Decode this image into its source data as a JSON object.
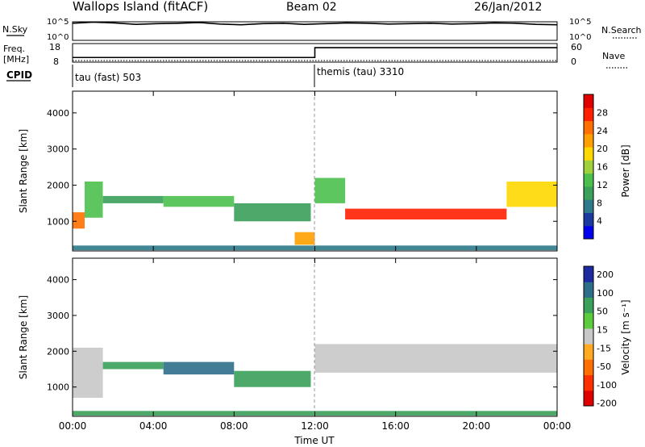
{
  "header": {
    "station": "Wallops Island (fitACF)",
    "beam": "Beam 02",
    "date": "26/Jan/2012"
  },
  "status_panels": {
    "nsky_label": "N.Sky",
    "nsky_ticks": [
      "10^5",
      "10^0"
    ],
    "nsearch_label": "N.Search",
    "nsearch_ticks": [
      "10^5",
      "10^0"
    ],
    "freq_label": "Freq.",
    "freq_unit": "[MHz]",
    "freq_ticks": [
      "18",
      "8"
    ],
    "nave_label": "Nave",
    "nave_ticks": [
      "60",
      "0"
    ],
    "cpid_label": "CPID",
    "cpid_modes": [
      {
        "name": "tau (fast) 503",
        "start": "00:00"
      },
      {
        "name": "themis (tau) 3310",
        "start": "12:00"
      }
    ]
  },
  "chart_data": [
    {
      "type": "heatmap",
      "name": "power",
      "xlabel": "Time UT",
      "ylabel": "Slant Range [km]",
      "x_ticks": [
        "00:00",
        "04:00",
        "08:00",
        "12:00",
        "16:00",
        "20:00",
        "00:00"
      ],
      "xlim_hours": [
        0,
        24
      ],
      "y_ticks": [
        1000,
        2000,
        3000,
        4000
      ],
      "ylim_km": [
        180,
        4600
      ],
      "colorbar": {
        "label": "Power [dB]",
        "ticks": [
          4,
          8,
          12,
          16,
          20,
          24,
          28
        ],
        "range": [
          0,
          32
        ],
        "colors": [
          "#0000ee",
          "#1a3aa0",
          "#2e7a8a",
          "#3aa05a",
          "#4cc04c",
          "#9fd23a",
          "#ffd800",
          "#ffa000",
          "#ff7000",
          "#ff2000",
          "#e00000"
        ]
      },
      "echo_regions": [
        {
          "t0": 0.0,
          "t1": 0.6,
          "r0": 800,
          "r1": 1250,
          "power_db": 24
        },
        {
          "t0": 0.6,
          "t1": 1.5,
          "r0": 1100,
          "r1": 2100,
          "power_db": 12
        },
        {
          "t0": 1.5,
          "t1": 4.5,
          "r0": 1500,
          "r1": 1700,
          "power_db": 10
        },
        {
          "t0": 4.5,
          "t1": 8.0,
          "r0": 1400,
          "r1": 1700,
          "power_db": 14
        },
        {
          "t0": 8.0,
          "t1": 11.8,
          "r0": 1000,
          "r1": 1500,
          "power_db": 10
        },
        {
          "t0": 11.0,
          "t1": 12.0,
          "r0": 350,
          "r1": 700,
          "power_db": 22
        },
        {
          "t0": 12.0,
          "t1": 13.5,
          "r0": 1500,
          "r1": 2200,
          "power_db": 14
        },
        {
          "t0": 13.5,
          "t1": 21.5,
          "r0": 1050,
          "r1": 1350,
          "power_db": 28
        },
        {
          "t0": 21.5,
          "t1": 24.0,
          "r0": 1400,
          "r1": 2100,
          "power_db": 20
        },
        {
          "t0": 0.0,
          "t1": 24.0,
          "r0": 200,
          "r1": 330,
          "power_db": 8
        }
      ]
    },
    {
      "type": "heatmap",
      "name": "velocity",
      "xlabel": "Time UT",
      "ylabel": "Slant Range [km]",
      "x_ticks": [
        "00:00",
        "04:00",
        "08:00",
        "12:00",
        "16:00",
        "20:00",
        "00:00"
      ],
      "xlim_hours": [
        0,
        24
      ],
      "y_ticks": [
        1000,
        2000,
        3000,
        4000
      ],
      "ylim_km": [
        180,
        4600
      ],
      "colorbar": {
        "label": "Velocity [m s⁻¹]",
        "ticks": [
          200,
          100,
          50,
          15,
          -15,
          -50,
          -100,
          -200
        ],
        "colors": [
          "#1e2aa0",
          "#2e6e8a",
          "#3aa05a",
          "#5ccc3c",
          "#c8c8c8",
          "#ffaa20",
          "#ff7000",
          "#ff3000",
          "#e00000"
        ]
      },
      "echo_regions": [
        {
          "t0": 0.0,
          "t1": 1.5,
          "r0": 700,
          "r1": 2100,
          "vel": 0
        },
        {
          "t0": 1.5,
          "t1": 4.5,
          "r0": 1500,
          "r1": 1700,
          "vel": 60
        },
        {
          "t0": 4.5,
          "t1": 8.0,
          "r0": 1350,
          "r1": 1700,
          "vel": 80
        },
        {
          "t0": 8.0,
          "t1": 11.8,
          "r0": 1000,
          "r1": 1450,
          "vel": 40
        },
        {
          "t0": 12.0,
          "t1": 24.0,
          "r0": 1400,
          "r1": 2200,
          "vel": 0
        },
        {
          "t0": 0.0,
          "t1": 24.0,
          "r0": 200,
          "r1": 330,
          "vel": 60
        }
      ]
    }
  ],
  "stats": {
    "nsky_trace": [
      4.6,
      4.9,
      4.7,
      4.3,
      4.5,
      4.6,
      4.8,
      4.4,
      4.2,
      4.5,
      4.6,
      4.3,
      4.5,
      4.7,
      4.6,
      4.4,
      4.5,
      4.6,
      4.4,
      4.5,
      4.7,
      4.6,
      4.3,
      4.2
    ],
    "freq_mhz": [
      {
        "t0": 0,
        "t1": 12,
        "value": 10.5
      },
      {
        "t0": 12,
        "t1": 24,
        "value": 15.8
      }
    ],
    "nave": [
      {
        "t0": 0,
        "t1": 12,
        "value": 5
      },
      {
        "t0": 12,
        "t1": 24,
        "value": 5
      }
    ]
  }
}
